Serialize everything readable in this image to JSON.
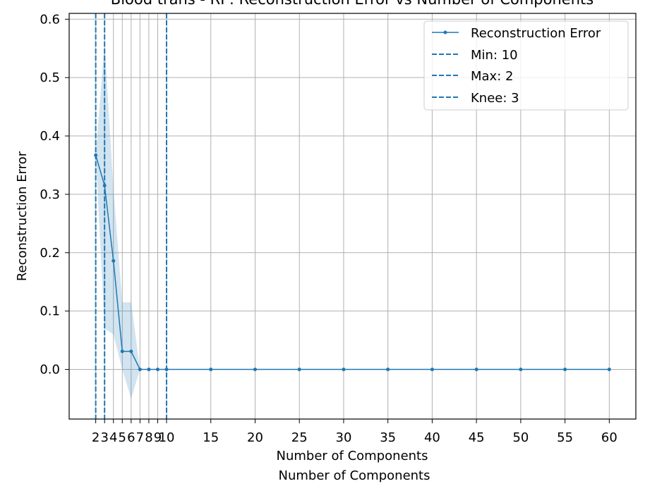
{
  "chart_data": {
    "type": "line",
    "title": "Blood trans - RP: Reconstruction Error vs Number of Components",
    "xlabel": "Number of Components",
    "xlabel_secondary": "Number of Components",
    "ylabel": "Reconstruction Error",
    "xlim": [
      -1.0,
      63.0
    ],
    "ylim": [
      -0.085,
      0.61
    ],
    "xticks": [
      2,
      3,
      4,
      5,
      6,
      7,
      8,
      9,
      10,
      15,
      20,
      25,
      30,
      35,
      40,
      45,
      50,
      55,
      60
    ],
    "xtick_labels": [
      "2",
      "3",
      "4",
      "5",
      "6",
      "7",
      "8",
      "9",
      "10",
      "15",
      "20",
      "25",
      "30",
      "35",
      "40",
      "45",
      "50",
      "55",
      "60"
    ],
    "yticks": [
      0.0,
      0.1,
      0.2,
      0.3,
      0.4,
      0.5,
      0.6
    ],
    "ytick_labels": [
      "0.0",
      "0.1",
      "0.2",
      "0.3",
      "0.4",
      "0.5",
      "0.6"
    ],
    "grid": true,
    "legend_position": "top-right",
    "series": [
      {
        "name": "Reconstruction Error",
        "color": "#1f77b4",
        "x": [
          2,
          3,
          4,
          5,
          6,
          7,
          8,
          9,
          10,
          15,
          20,
          25,
          30,
          35,
          40,
          45,
          50,
          55,
          60
        ],
        "y": [
          0.367,
          0.315,
          0.186,
          0.031,
          0.031,
          0.0,
          0.0,
          0.0,
          0.0,
          0.0,
          0.0,
          0.0,
          0.0,
          0.0,
          0.0,
          0.0,
          0.0,
          0.0,
          0.0
        ],
        "band_lower": [
          0.367,
          0.07,
          0.06,
          0.0,
          -0.05,
          0.0,
          0.0,
          0.0,
          0.0,
          0.0,
          0.0,
          0.0,
          0.0,
          0.0,
          0.0,
          0.0,
          0.0,
          0.0,
          0.0
        ],
        "band_upper": [
          0.367,
          0.56,
          0.31,
          0.115,
          0.115,
          0.0,
          0.0,
          0.0,
          0.0,
          0.0,
          0.0,
          0.0,
          0.0,
          0.0,
          0.0,
          0.0,
          0.0,
          0.0,
          0.0
        ]
      }
    ],
    "vlines": [
      {
        "name": "Min: 10",
        "x": 10,
        "color": "#1f77b4"
      },
      {
        "name": "Max: 2",
        "x": 2,
        "color": "#1f77b4"
      },
      {
        "name": "Knee: 3",
        "x": 3,
        "color": "#1f77b4"
      }
    ]
  }
}
